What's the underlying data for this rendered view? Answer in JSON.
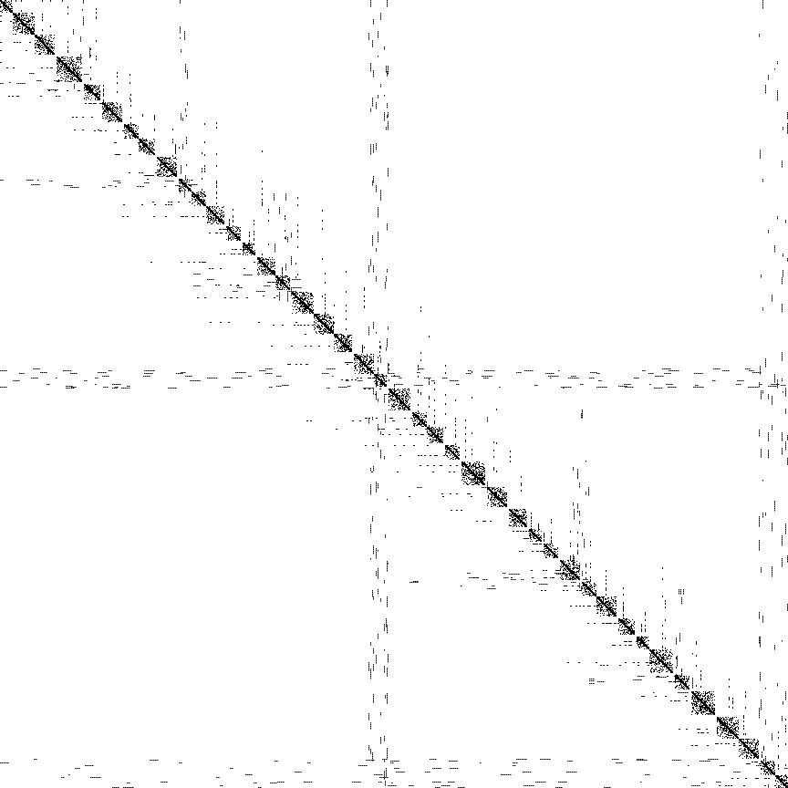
{
  "figure": {
    "kind": "sparsity-pattern",
    "structure": "nested-dissection",
    "colors": {
      "background": "#ffffff",
      "nonzero": "#000000"
    },
    "separators_visible": true,
    "diagonal_blocks_visible": true,
    "text": ""
  }
}
